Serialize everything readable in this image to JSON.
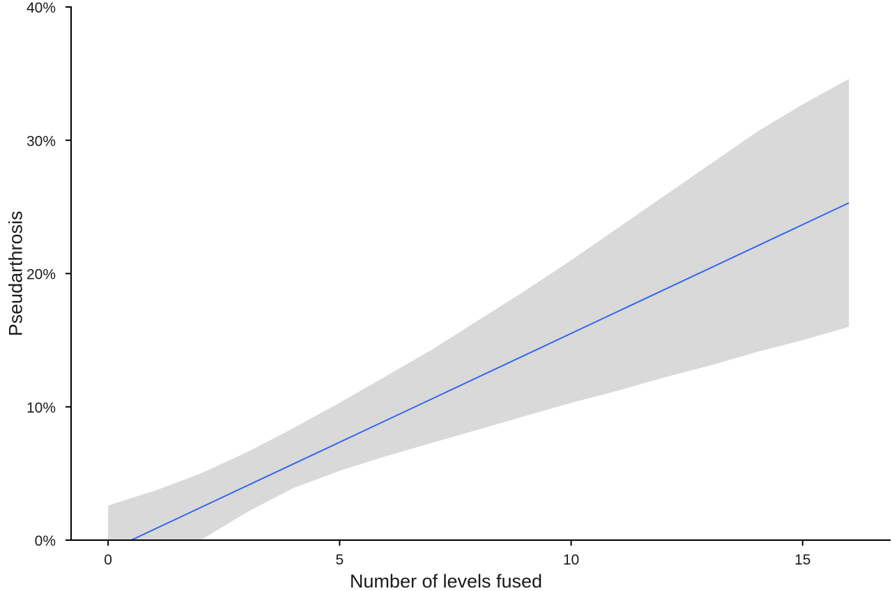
{
  "chart_data": {
    "type": "line",
    "xlabel": "Number of levels fused",
    "ylabel": "Pseudarthrosis",
    "xlim": [
      -0.8,
      16.9
    ],
    "ylim": [
      0,
      40
    ],
    "x_ticks": [
      0,
      5,
      10,
      15
    ],
    "x_tick_labels": [
      "0",
      "5",
      "10",
      "15"
    ],
    "y_ticks": [
      0,
      10,
      20,
      30,
      40
    ],
    "y_tick_labels": [
      "0%",
      "10%",
      "20%",
      "30%",
      "40%"
    ],
    "grid": false,
    "series": [
      {
        "x": [
          0.5,
          16
        ],
        "y": [
          0,
          25.3
        ],
        "color": "#3366ee"
      }
    ],
    "confidence_band": {
      "color": "#d9d9d9",
      "x": [
        0,
        1,
        2,
        3,
        4,
        5,
        6,
        7,
        8,
        9,
        10,
        11,
        12,
        13,
        14,
        15,
        16
      ],
      "upper": [
        2.6,
        3.7,
        5.0,
        6.6,
        8.4,
        10.3,
        12.3,
        14.3,
        16.5,
        18.7,
        21.0,
        23.4,
        25.8,
        28.2,
        30.6,
        32.7,
        34.6
      ],
      "lower": [
        0,
        0,
        0,
        2.1,
        3.9,
        5.2,
        6.3,
        7.3,
        8.3,
        9.3,
        10.3,
        11.2,
        12.2,
        13.1,
        14.1,
        15.0,
        16.0
      ]
    }
  }
}
